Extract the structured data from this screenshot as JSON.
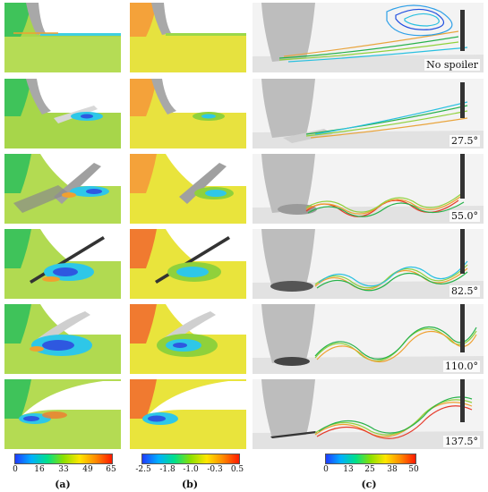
{
  "columns": {
    "a": {
      "letter": "(a)"
    },
    "b": {
      "letter": "(b)"
    },
    "c": {
      "letter": "(c)"
    }
  },
  "rows": [
    {
      "angle_label": "No spoiler"
    },
    {
      "angle_label": "27.5°"
    },
    {
      "angle_label": "55.0°"
    },
    {
      "angle_label": "82.5°"
    },
    {
      "angle_label": "110.0°"
    },
    {
      "angle_label": "137.5°"
    }
  ],
  "colorbars": {
    "a": {
      "ticks": [
        "0",
        "16",
        "33",
        "49",
        "65"
      ]
    },
    "b": {
      "ticks": [
        "-2.5",
        "-1.8",
        "-1.0",
        "-0.3",
        "0.5"
      ]
    },
    "c": {
      "ticks": [
        "0",
        "13",
        "25",
        "38",
        "50"
      ]
    }
  },
  "colors": {
    "field_green": "#8fd13b",
    "field_yellow": "#e9e43c",
    "field_orange": "#f4a23a",
    "cyan": "#25c7e8",
    "blue": "#2250e0",
    "gray_surface": "#c9c9c9"
  }
}
